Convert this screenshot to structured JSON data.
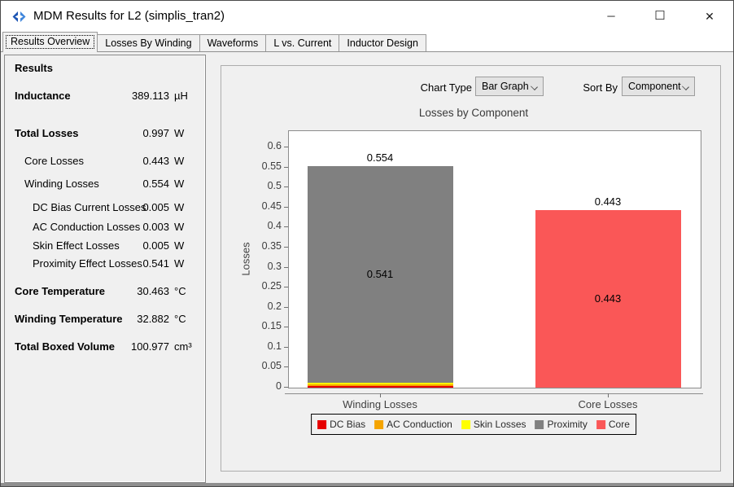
{
  "window": {
    "title": "MDM Results for L2 (simplis_tran2)",
    "controls": {
      "minimize": "─",
      "maximize": "☐",
      "close": "✕"
    },
    "icon_colors": {
      "left": "#1d55b4",
      "right": "#3f86dc"
    }
  },
  "tabs": [
    {
      "label": "Results Overview",
      "active": true
    },
    {
      "label": "Losses By Winding",
      "active": false
    },
    {
      "label": "Waveforms",
      "active": false
    },
    {
      "label": "L vs. Current",
      "active": false
    },
    {
      "label": "Inductor Design",
      "active": false
    }
  ],
  "results_panel": {
    "rows": [
      {
        "label": "Results",
        "value": "",
        "unit": "",
        "bold": true,
        "indent": 0
      },
      {
        "label": "Inductance",
        "value": "389.113",
        "unit": "µH",
        "bold": true,
        "indent": 0
      },
      {
        "label": "Total Losses",
        "value": "0.997",
        "unit": "W",
        "bold": true,
        "indent": 0
      },
      {
        "label": "Core Losses",
        "value": "0.443",
        "unit": "W",
        "bold": false,
        "indent": 1
      },
      {
        "label": "Winding Losses",
        "value": "0.554",
        "unit": "W",
        "bold": false,
        "indent": 1
      },
      {
        "label": "DC Bias Current Losses",
        "value": "0.005",
        "unit": "W",
        "bold": false,
        "indent": 2
      },
      {
        "label": "AC Conduction Losses",
        "value": "0.003",
        "unit": "W",
        "bold": false,
        "indent": 2
      },
      {
        "label": "Skin Effect Losses",
        "value": "0.005",
        "unit": "W",
        "bold": false,
        "indent": 2
      },
      {
        "label": "Proximity Effect Losses",
        "value": "0.541",
        "unit": "W",
        "bold": false,
        "indent": 2
      },
      {
        "label": "Core Temperature",
        "value": "30.463",
        "unit": "°C",
        "bold": true,
        "indent": 0
      },
      {
        "label": "Winding Temperature",
        "value": "32.882",
        "unit": "°C",
        "bold": true,
        "indent": 0
      },
      {
        "label": "Total Boxed Volume",
        "value": "100.977",
        "unit": "cm³",
        "bold": true,
        "indent": 0
      }
    ]
  },
  "chart_controls": {
    "chart_type_label": "Chart Type",
    "chart_type_value": "Bar Graph",
    "sort_by_label": "Sort By",
    "sort_by_value": "Component"
  },
  "chart_data": {
    "type": "bar",
    "stacked": true,
    "title": "Losses by Component",
    "xlabel": "",
    "ylabel": "Losses",
    "ylim": [
      0,
      0.6
    ],
    "ytick_step": 0.05,
    "ytick_labels": [
      "0",
      "0.05",
      "0.1",
      "0.15",
      "0.2",
      "0.25",
      "0.3",
      "0.35",
      "0.4",
      "0.45",
      "0.5",
      "0.55",
      "0.6"
    ],
    "grid": false,
    "legend_position": "bottom",
    "categories": [
      "Winding Losses",
      "Core Losses"
    ],
    "series": [
      {
        "name": "DC Bias",
        "color": "#e60000",
        "values": [
          0.005,
          0
        ]
      },
      {
        "name": "AC Conduction",
        "color": "#f5a400",
        "values": [
          0.003,
          0
        ]
      },
      {
        "name": "Skin Losses",
        "color": "#ffff00",
        "values": [
          0.005,
          0
        ]
      },
      {
        "name": "Proximity",
        "color": "#808080",
        "values": [
          0.541,
          0
        ]
      },
      {
        "name": "Core",
        "color": "#fa5757",
        "values": [
          0,
          0.443
        ]
      }
    ],
    "bar_total_labels": [
      "0.554",
      "0.443"
    ],
    "bar_inner_labels": [
      "0.541",
      "0.443"
    ]
  }
}
